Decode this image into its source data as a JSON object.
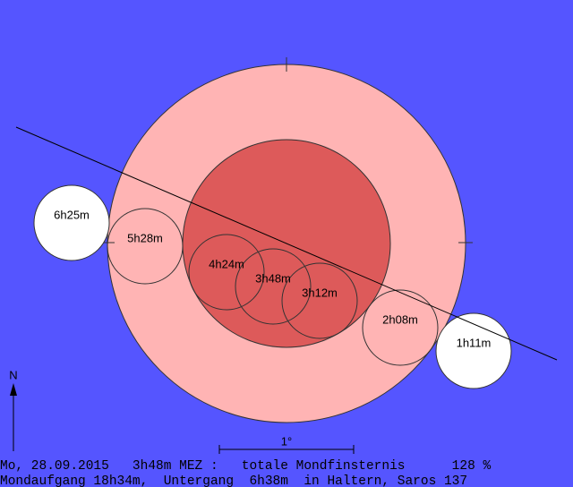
{
  "moons": [
    {
      "label": "6h25m"
    },
    {
      "label": "5h28m"
    },
    {
      "label": "4h24m"
    },
    {
      "label": "3h48m"
    },
    {
      "label": "3h12m"
    },
    {
      "label": "2h08m"
    },
    {
      "label": "1h11m"
    }
  ],
  "north_label": "N",
  "scale_label": "1°",
  "footer": {
    "line1": "Mo, 28.09.2015   3h48m MEZ :   totale Mondfinsternis      128 %",
    "line2": "Mondaufgang 18h34m,  Untergang  6h38m  in Haltern, Saros 137"
  }
}
